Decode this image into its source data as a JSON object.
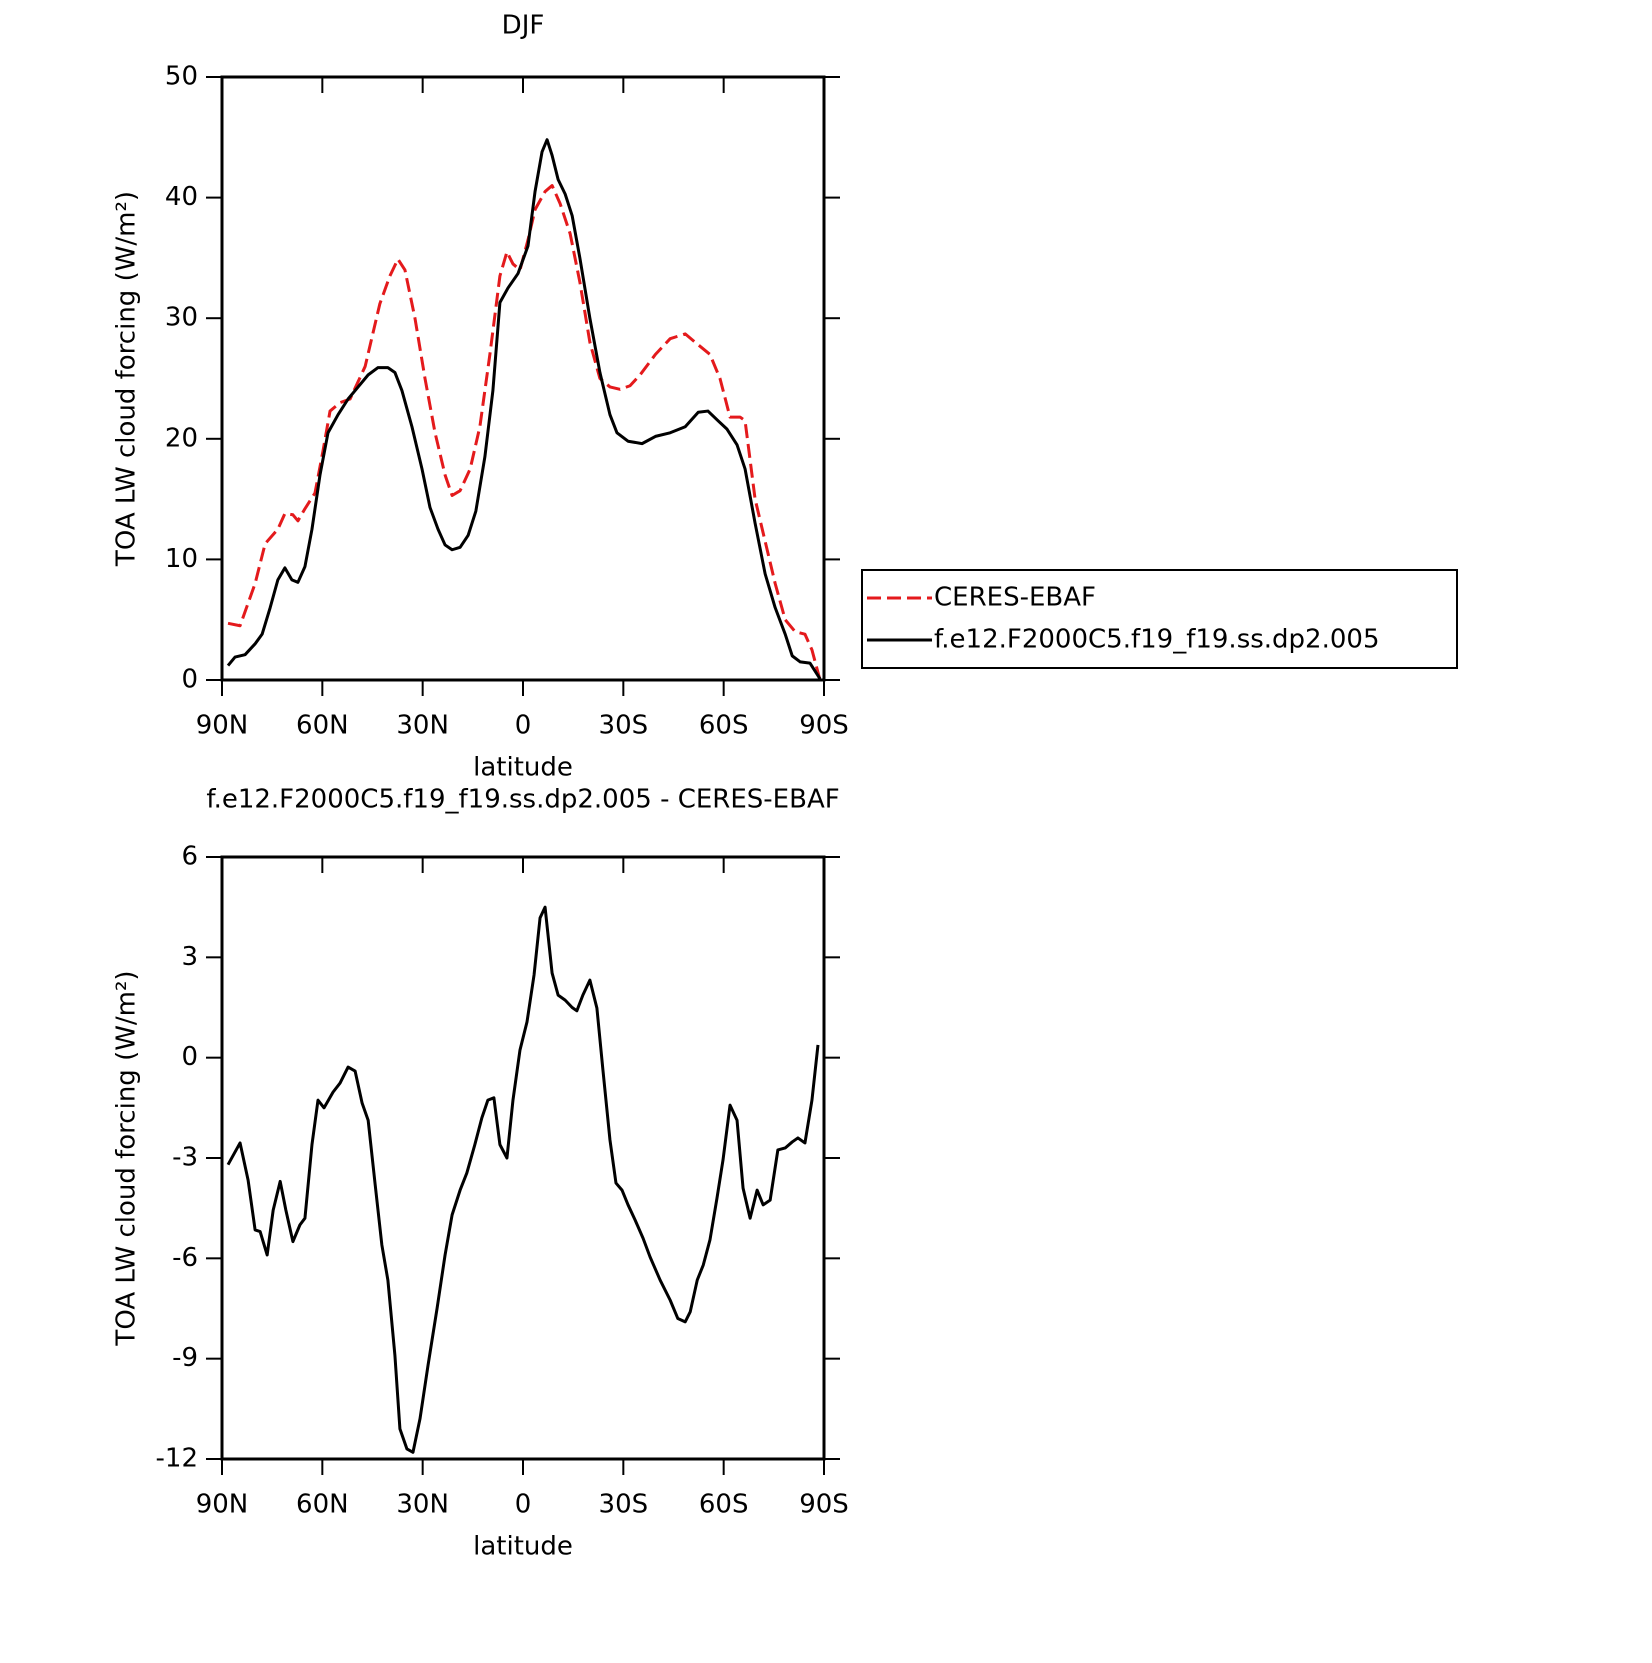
{
  "chart_data": [
    {
      "type": "line",
      "title": "DJF",
      "xlabel": "latitude",
      "ylabel": "TOA LW cloud forcing (W/m²)",
      "xlim": [
        90,
        -90
      ],
      "xticks": [
        {
          "value": 90,
          "label": "90N"
        },
        {
          "value": 60,
          "label": "60N"
        },
        {
          "value": 30,
          "label": "30N"
        },
        0,
        {
          "value": -30,
          "label": "30S"
        },
        {
          "value": -60,
          "label": "60S"
        },
        {
          "value": -90,
          "label": "90S"
        }
      ],
      "ylim": [
        0,
        50
      ],
      "yticks": [
        0,
        10,
        20,
        30,
        40,
        50
      ],
      "legend": true,
      "series": [
        {
          "name": "CERES-EBAF",
          "color": "#e41a1c",
          "dash": true,
          "x": [
            88.2,
            84.6,
            80.1,
            77.1,
            73.3,
            71.2,
            68.8,
            67.3,
            65.2,
            62.2,
            59.8,
            57.7,
            54.7,
            51.7,
            47.2,
            42.8,
            39.8,
            37.4,
            35.3,
            32.3,
            29.3,
            26.3,
            23.3,
            21.2,
            18.8,
            15.8,
            12.9,
            9.9,
            6.9,
            4.8,
            3.0,
            0.9,
            -1.5,
            -3.6,
            -6.6,
            -8.7,
            -11.1,
            -14.1,
            -17.0,
            -20.0,
            -23.0,
            -26.0,
            -29.0,
            -32.0,
            -35.0,
            -39.6,
            -44.0,
            -48.5,
            -51.5,
            -55.9,
            -58.9,
            -61.9,
            -64.9,
            -66.4,
            -69.4,
            -72.4,
            -75.4,
            -78.4,
            -81.4,
            -84.3,
            -86.4,
            -88.8
          ],
          "values": [
            4.7,
            4.5,
            8,
            11.3,
            12.5,
            13.8,
            13.7,
            13.2,
            14.2,
            15.5,
            19,
            22.3,
            23,
            23.3,
            26,
            31.2,
            33.5,
            34.9,
            34,
            30,
            25,
            20.5,
            17,
            15.3,
            15.7,
            17.5,
            21,
            27,
            33.5,
            35.5,
            34.5,
            34,
            36.5,
            39,
            40.5,
            41,
            39.5,
            37,
            33,
            28,
            25,
            24.3,
            24.1,
            24.4,
            25.3,
            27,
            28.3,
            28.7,
            28,
            27,
            25,
            21.8,
            21.8,
            21.5,
            15,
            11.5,
            8,
            5,
            4,
            3.8,
            2.5,
            0
          ]
        },
        {
          "name": "f.e12.F2000C5.f19_f19.ss.dp2.005",
          "color": "#000000",
          "dash": false,
          "x": [
            88.2,
            86.1,
            83.1,
            80.1,
            78.0,
            75.6,
            73.3,
            71.2,
            69.1,
            67.3,
            65.2,
            63.1,
            60.7,
            58.3,
            55.3,
            52.3,
            49.3,
            46.3,
            43.4,
            40.4,
            38.3,
            36.2,
            33.2,
            30.2,
            27.8,
            25.4,
            23.3,
            21.2,
            18.8,
            16.4,
            14.1,
            11.4,
            9.0,
            6.9,
            4.5,
            1.5,
            -1.5,
            -3.6,
            -5.7,
            -7.2,
            -8.7,
            -10.5,
            -12.6,
            -14.7,
            -17.0,
            -20.0,
            -23.0,
            -26.0,
            -28.1,
            -31.4,
            -35.6,
            -39.6,
            -44.0,
            -48.5,
            -52.4,
            -55.3,
            -58.3,
            -61.0,
            -64.0,
            -66.4,
            -69.4,
            -72.4,
            -75.4,
            -78.4,
            -80.5,
            -82.9,
            -85.8,
            -88.8
          ],
          "values": [
            1.2,
            1.9,
            2.1,
            3,
            3.8,
            6,
            8.3,
            9.3,
            8.3,
            8.1,
            9.4,
            12.5,
            17,
            20.5,
            22,
            23.3,
            24.3,
            25.3,
            25.9,
            25.9,
            25.5,
            24,
            21,
            17.5,
            14.3,
            12.5,
            11.2,
            10.8,
            11,
            12,
            14,
            18.5,
            24,
            31.3,
            32.5,
            33.7,
            36,
            40.5,
            43.8,
            44.8,
            43.5,
            41.5,
            40.3,
            38.5,
            35,
            30,
            25.5,
            22,
            20.5,
            19.8,
            19.6,
            20.2,
            20.5,
            21,
            22.2,
            22.3,
            21.5,
            20.8,
            19.5,
            17.5,
            13,
            8.8,
            6,
            3.8,
            2,
            1.5,
            1.4,
            0.1
          ]
        }
      ]
    },
    {
      "type": "line",
      "title": "f.e12.F2000C5.f19_f19.ss.dp2.005 - CERES-EBAF",
      "xlabel": "latitude",
      "ylabel": "TOA LW cloud forcing (W/m²)",
      "xlim": [
        90,
        -90
      ],
      "xticks": [
        {
          "value": 90,
          "label": "90N"
        },
        {
          "value": 60,
          "label": "60N"
        },
        {
          "value": 30,
          "label": "30N"
        },
        0,
        {
          "value": -30,
          "label": "30S"
        },
        {
          "value": -60,
          "label": "60S"
        },
        {
          "value": -90,
          "label": "90S"
        }
      ],
      "ylim": [
        -12,
        6
      ],
      "yticks": [
        -12,
        -9,
        -6,
        -3,
        0,
        3,
        6
      ],
      "legend": false,
      "series": [
        {
          "color": "#000000",
          "dash": false,
          "x": [
            88.2,
            84.6,
            82.2,
            80.1,
            78.6,
            76.5,
            74.7,
            72.6,
            70.9,
            68.8,
            66.7,
            65.2,
            63.1,
            61.3,
            59.5,
            56.8,
            54.7,
            52.3,
            50.2,
            48.1,
            46.3,
            44.2,
            42.2,
            40.4,
            38.3,
            36.8,
            34.7,
            32.9,
            30.8,
            28.4,
            25.7,
            23.3,
            21.2,
            18.8,
            16.8,
            14.4,
            12.3,
            10.5,
            8.7,
            6.9,
            4.8,
            3.0,
            0.9,
            -1.2,
            -3.3,
            -5.1,
            -6.6,
            -8.7,
            -10.5,
            -12.6,
            -14.7,
            -16.1,
            -17.9,
            -20.0,
            -22.1,
            -23.9,
            -26.0,
            -27.8,
            -29.6,
            -31.4,
            -33.5,
            -35.9,
            -38.0,
            -41.0,
            -44.0,
            -46.3,
            -48.5,
            -50.0,
            -52.1,
            -53.9,
            -55.9,
            -58.0,
            -59.8,
            -61.9,
            -64.0,
            -65.8,
            -67.9,
            -70.0,
            -71.8,
            -73.9,
            -76.2,
            -78.4,
            -80.5,
            -82.2,
            -84.3,
            -86.4,
            -88.2
          ],
          "values": [
            -3.2,
            -2.55,
            -3.66,
            -5.15,
            -5.2,
            -5.9,
            -4.56,
            -3.7,
            -4.56,
            -5.5,
            -5.0,
            -4.8,
            -2.6,
            -1.27,
            -1.5,
            -1.03,
            -0.76,
            -0.28,
            -0.4,
            -1.36,
            -1.87,
            -3.8,
            -5.6,
            -6.65,
            -8.9,
            -11.1,
            -11.7,
            -11.8,
            -10.8,
            -9.2,
            -7.5,
            -5.9,
            -4.7,
            -3.96,
            -3.45,
            -2.6,
            -1.8,
            -1.27,
            -1.2,
            -2.6,
            -3.0,
            -1.27,
            0.23,
            1.07,
            2.47,
            4.18,
            4.5,
            2.53,
            1.87,
            1.72,
            1.5,
            1.4,
            1.87,
            2.32,
            1.48,
            -0.37,
            -2.46,
            -3.75,
            -3.96,
            -4.4,
            -4.85,
            -5.4,
            -5.96,
            -6.65,
            -7.25,
            -7.8,
            -7.9,
            -7.6,
            -6.65,
            -6.2,
            -5.45,
            -4.2,
            -3.06,
            -1.42,
            -1.87,
            -3.9,
            -4.8,
            -3.96,
            -4.4,
            -4.26,
            -2.76,
            -2.7,
            -2.52,
            -2.4,
            -2.55,
            -1.27,
            0.38
          ]
        }
      ]
    }
  ]
}
